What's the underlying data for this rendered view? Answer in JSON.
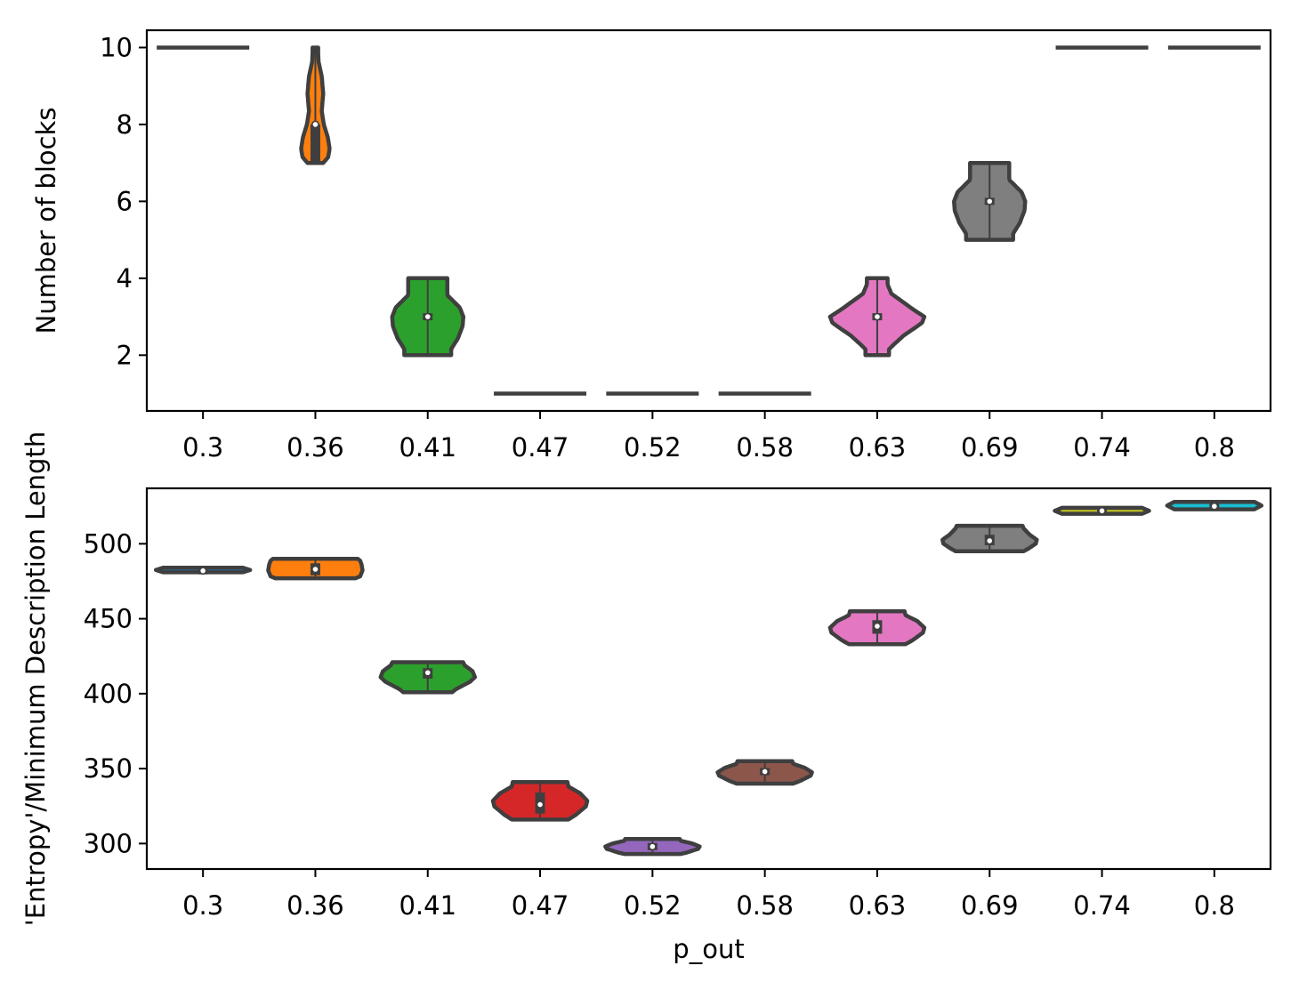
{
  "chart_data": [
    {
      "type": "violin",
      "xlabel": "",
      "ylabel": "Number of blocks",
      "categories": [
        "0.3",
        "0.36",
        "0.41",
        "0.47",
        "0.52",
        "0.58",
        "0.63",
        "0.69",
        "0.74",
        "0.8"
      ],
      "ylim": [
        0.55,
        10.45
      ],
      "yticks": [
        2,
        4,
        6,
        8,
        10
      ],
      "grid": false,
      "violins": [
        {
          "category": "0.3",
          "color": "#1f77b4",
          "min": 10,
          "max": 10,
          "median": 10,
          "q1": 10,
          "q3": 10,
          "shape": "degenerate"
        },
        {
          "category": "0.36",
          "color": "#ff7f0e",
          "min": 7,
          "max": 10,
          "median": 8,
          "q1": 7,
          "q3": 8,
          "shape": "orange-blocks"
        },
        {
          "category": "0.41",
          "color": "#2ca02c",
          "min": 2,
          "max": 4,
          "median": 3,
          "q1": 3,
          "q3": 3,
          "shape": "diamond-bulge"
        },
        {
          "category": "0.47",
          "color": "#d62728",
          "min": 1,
          "max": 1,
          "median": 1,
          "q1": 1,
          "q3": 1,
          "shape": "degenerate"
        },
        {
          "category": "0.52",
          "color": "#9467bd",
          "min": 1,
          "max": 1,
          "median": 1,
          "q1": 1,
          "q3": 1,
          "shape": "degenerate"
        },
        {
          "category": "0.58",
          "color": "#8c564b",
          "min": 1,
          "max": 1,
          "median": 1,
          "q1": 1,
          "q3": 1,
          "shape": "degenerate"
        },
        {
          "category": "0.63",
          "color": "#e377c2",
          "min": 2,
          "max": 4,
          "median": 3,
          "q1": 3,
          "q3": 3,
          "shape": "diamond-wide"
        },
        {
          "category": "0.69",
          "color": "#7f7f7f",
          "min": 5,
          "max": 7,
          "median": 6,
          "q1": 6,
          "q3": 6,
          "shape": "diamond-bulge"
        },
        {
          "category": "0.74",
          "color": "#bcbd22",
          "min": 10,
          "max": 10,
          "median": 10,
          "q1": 10,
          "q3": 10,
          "shape": "degenerate"
        },
        {
          "category": "0.8",
          "color": "#17becf",
          "min": 10,
          "max": 10,
          "median": 10,
          "q1": 10,
          "q3": 10,
          "shape": "degenerate"
        }
      ]
    },
    {
      "type": "violin",
      "xlabel": "p_out",
      "ylabel": "'Entropy'/Minimum Description Length",
      "categories": [
        "0.3",
        "0.36",
        "0.41",
        "0.47",
        "0.52",
        "0.58",
        "0.63",
        "0.69",
        "0.74",
        "0.8"
      ],
      "ylim": [
        283,
        537
      ],
      "yticks": [
        300,
        350,
        400,
        450,
        500
      ],
      "grid": false,
      "violins": [
        {
          "category": "0.3",
          "color": "#1f77b4",
          "min": 481,
          "max": 484,
          "median": 482,
          "q1": 481,
          "q3": 483,
          "shape": "thin"
        },
        {
          "category": "0.36",
          "color": "#ff7f0e",
          "min": 477,
          "max": 490,
          "median": 483,
          "q1": 479,
          "q3": 487,
          "shape": "wide-bottom"
        },
        {
          "category": "0.41",
          "color": "#2ca02c",
          "min": 401,
          "max": 421,
          "median": 414,
          "q1": 410,
          "q3": 417,
          "shape": "wide-top"
        },
        {
          "category": "0.47",
          "color": "#d62728",
          "min": 316,
          "max": 341,
          "median": 326,
          "q1": 320,
          "q3": 334,
          "shape": "mid"
        },
        {
          "category": "0.52",
          "color": "#9467bd",
          "min": 293,
          "max": 303,
          "median": 298,
          "q1": 296,
          "q3": 300,
          "shape": "mid"
        },
        {
          "category": "0.58",
          "color": "#8c564b",
          "min": 340,
          "max": 355,
          "median": 348,
          "q1": 346,
          "q3": 350,
          "shape": "mid"
        },
        {
          "category": "0.63",
          "color": "#e377c2",
          "min": 433,
          "max": 455,
          "median": 445,
          "q1": 440,
          "q3": 449,
          "shape": "mid"
        },
        {
          "category": "0.69",
          "color": "#7f7f7f",
          "min": 495,
          "max": 512,
          "median": 502,
          "q1": 499,
          "q3": 506,
          "shape": "mid-low"
        },
        {
          "category": "0.74",
          "color": "#bcbd22",
          "min": 520,
          "max": 524,
          "median": 522,
          "q1": 521,
          "q3": 523,
          "shape": "thin"
        },
        {
          "category": "0.8",
          "color": "#17becf",
          "min": 523,
          "max": 528,
          "median": 525,
          "q1": 524,
          "q3": 526,
          "shape": "thin"
        }
      ]
    }
  ]
}
